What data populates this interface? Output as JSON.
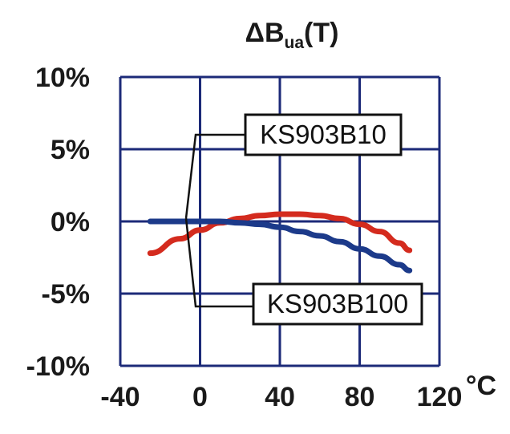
{
  "chart_data": {
    "type": "line",
    "title": {
      "main": "ΔB",
      "sub": "ua",
      "suffix": "(T)"
    },
    "xlabel": "°C",
    "ylabel": "",
    "x_ticks": [
      "-40",
      "0",
      "40",
      "80",
      "120"
    ],
    "y_ticks": [
      "10%",
      "5%",
      "0%",
      "-5%",
      "-10%"
    ],
    "xlim": [
      -40,
      120
    ],
    "ylim": [
      -10,
      10
    ],
    "grid": true,
    "colors": {
      "grid": "#1c2a78",
      "axis_frame": "#1c2a78"
    },
    "series": [
      {
        "name": "KS903B10",
        "color": "#d42b1e",
        "x": [
          -25,
          -10,
          0,
          10,
          20,
          30,
          40,
          50,
          60,
          70,
          80,
          90,
          100,
          105
        ],
        "y": [
          -2.2,
          -1.2,
          -0.6,
          -0.1,
          0.2,
          0.4,
          0.5,
          0.5,
          0.4,
          0.2,
          -0.2,
          -0.7,
          -1.5,
          -2.0
        ]
      },
      {
        "name": "KS903B100",
        "color": "#1c3a8a",
        "x": [
          -25,
          -10,
          0,
          10,
          20,
          30,
          40,
          50,
          60,
          70,
          80,
          90,
          100,
          105
        ],
        "y": [
          0,
          0,
          0,
          0,
          -0.1,
          -0.2,
          -0.4,
          -0.7,
          -1.0,
          -1.4,
          -1.9,
          -2.4,
          -3.0,
          -3.4
        ]
      }
    ],
    "callouts": [
      {
        "label": "KS903B10",
        "series": 0
      },
      {
        "label": "KS903B100",
        "series": 1
      }
    ]
  }
}
